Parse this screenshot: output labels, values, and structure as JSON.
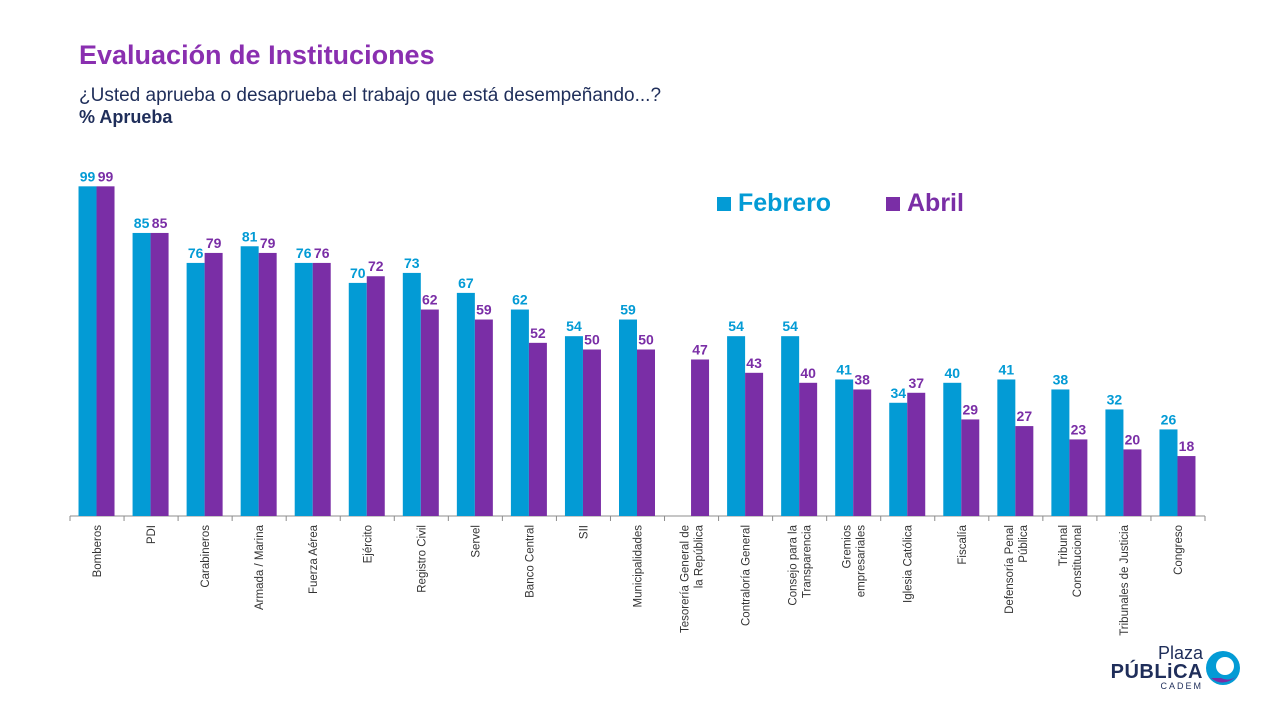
{
  "header": {
    "title": "Evaluación de Instituciones",
    "subtitle": "¿Usted aprueba o desaprueba el trabajo que está desempeñando...?",
    "metric": "% Aprueba"
  },
  "legend": {
    "feb": "Febrero",
    "abr": "Abril"
  },
  "colors": {
    "feb": "#039bd5",
    "abr": "#7a2ea6",
    "title": "#8a2fb0",
    "text": "#1f2e5a"
  },
  "logo": {
    "line1": "Plaza",
    "line2": "PÚBLiCA",
    "line3": "CADEM"
  },
  "chart_data": {
    "type": "bar",
    "ylim": [
      0,
      100
    ],
    "grid": false,
    "legend_position": "top-right",
    "categories": [
      [
        "Bomberos"
      ],
      [
        "PDI"
      ],
      [
        "Carabineros"
      ],
      [
        "Armada / Marina"
      ],
      [
        "Fuerza Aérea"
      ],
      [
        "Ejército"
      ],
      [
        "Registro Civil"
      ],
      [
        "Servel"
      ],
      [
        "Banco Central"
      ],
      [
        "SII"
      ],
      [
        "Municipalidades"
      ],
      [
        "Tesorería General de",
        "la República"
      ],
      [
        "Contraloría General"
      ],
      [
        "Consejo para la",
        "Transparencia"
      ],
      [
        "Gremios",
        "empresariales"
      ],
      [
        "Iglesia Católica"
      ],
      [
        "Fiscalía"
      ],
      [
        "Defensoría Penal",
        "Pública"
      ],
      [
        "Tribunal",
        "Constitucional"
      ],
      [
        "Tribunales de Justicia"
      ],
      [
        "Congreso"
      ]
    ],
    "series": [
      {
        "name": "Febrero",
        "values": [
          99,
          85,
          76,
          81,
          76,
          70,
          73,
          67,
          62,
          54,
          59,
          null,
          54,
          54,
          41,
          34,
          40,
          41,
          38,
          32,
          26
        ]
      },
      {
        "name": "Abril",
        "values": [
          99,
          85,
          79,
          79,
          76,
          72,
          62,
          59,
          52,
          50,
          50,
          47,
          43,
          40,
          38,
          37,
          29,
          27,
          23,
          20,
          18
        ]
      }
    ]
  }
}
